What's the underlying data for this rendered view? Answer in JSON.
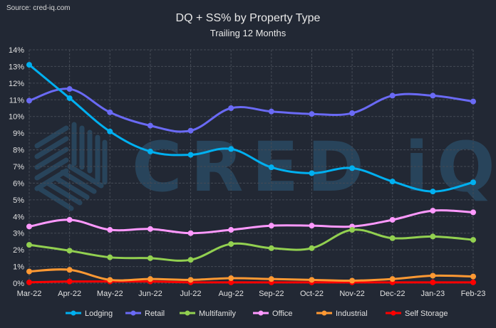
{
  "source": "Source: cred-iq.com",
  "watermark": "CRED iQ",
  "chart_data": {
    "type": "line",
    "title": "DQ + SS% by Property Type",
    "subtitle": "Trailing 12 Months",
    "xlabel": "",
    "ylabel": "",
    "ylim": [
      0,
      14
    ],
    "yticks": [
      "0%",
      "1%",
      "2%",
      "3%",
      "4%",
      "5%",
      "6%",
      "7%",
      "8%",
      "9%",
      "10%",
      "11%",
      "12%",
      "13%",
      "14%"
    ],
    "grid": true,
    "legend_position": "bottom",
    "categories": [
      "Mar-22",
      "Apr-22",
      "May-22",
      "Jun-22",
      "Jul-22",
      "Aug-22",
      "Sep-22",
      "Oct-22",
      "Nov-22",
      "Dec-22",
      "Jan-23",
      "Feb-23"
    ],
    "series": [
      {
        "name": "Lodging",
        "color": "#00b0f0",
        "values": [
          13.1,
          11.1,
          9.1,
          7.9,
          7.7,
          8.05,
          6.95,
          6.6,
          6.9,
          6.1,
          5.5,
          6.05
        ]
      },
      {
        "name": "Retail",
        "color": "#6a6af5",
        "values": [
          10.95,
          11.65,
          10.25,
          9.45,
          9.15,
          10.5,
          10.3,
          10.15,
          10.2,
          11.25,
          11.25,
          10.9
        ]
      },
      {
        "name": "Multifamily",
        "color": "#92d050",
        "values": [
          2.3,
          1.95,
          1.55,
          1.5,
          1.4,
          2.35,
          2.1,
          2.1,
          3.2,
          2.7,
          2.8,
          2.6
        ]
      },
      {
        "name": "Office",
        "color": "#ff99ff",
        "values": [
          3.4,
          3.8,
          3.2,
          3.25,
          3.0,
          3.2,
          3.45,
          3.45,
          3.4,
          3.8,
          4.35,
          4.25
        ]
      },
      {
        "name": "Industrial",
        "color": "#ff9933",
        "values": [
          0.7,
          0.8,
          0.2,
          0.25,
          0.2,
          0.3,
          0.25,
          0.2,
          0.15,
          0.25,
          0.45,
          0.4
        ]
      },
      {
        "name": "Self Storage",
        "color": "#ff0000",
        "values": [
          0.05,
          0.1,
          0.1,
          0.1,
          0.05,
          0.05,
          0.05,
          0.05,
          0.05,
          0.05,
          0.05,
          0.05
        ]
      }
    ]
  }
}
